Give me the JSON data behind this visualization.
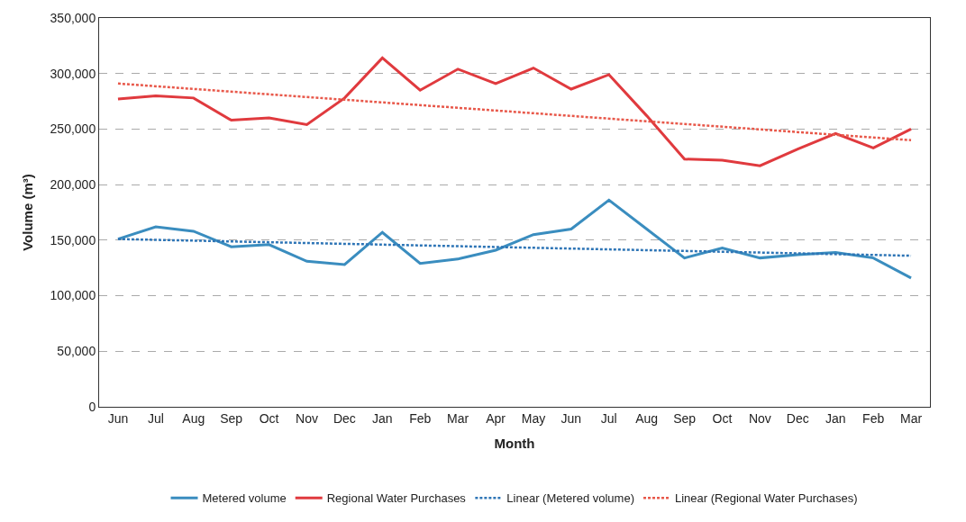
{
  "chart_data": {
    "type": "line",
    "xlabel": "Month",
    "ylabel": "Volume (m³)",
    "categories": [
      "Jun",
      "Jul",
      "Aug",
      "Sep",
      "Oct",
      "Nov",
      "Dec",
      "Jan",
      "Feb",
      "Mar",
      "Apr",
      "May",
      "Jun",
      "Jul",
      "Aug",
      "Sep",
      "Oct",
      "Nov",
      "Dec",
      "Jan",
      "Feb",
      "Mar"
    ],
    "series": [
      {
        "name": "Metered volume",
        "color": "#3a8dbf",
        "line_style": "solid",
        "values": [
          151000,
          162000,
          158000,
          144000,
          146000,
          131000,
          128000,
          157000,
          129000,
          133000,
          141000,
          155000,
          160000,
          186000,
          160000,
          134000,
          143000,
          134000,
          137000,
          139000,
          134000,
          116000
        ]
      },
      {
        "name": "Regional Water Purchases",
        "color": "#e03a3e",
        "line_style": "solid",
        "values": [
          277000,
          280000,
          278000,
          258000,
          260000,
          254000,
          278000,
          314000,
          285000,
          304000,
          291000,
          305000,
          286000,
          299000,
          262000,
          223000,
          222000,
          217000,
          232000,
          246000,
          233000,
          250000
        ]
      },
      {
        "name": "Linear (Metered volume)",
        "color": "#2e75b6",
        "line_style": "dotted",
        "values": [
          151000,
          null,
          null,
          null,
          null,
          null,
          null,
          null,
          null,
          null,
          null,
          null,
          null,
          null,
          null,
          null,
          null,
          null,
          null,
          null,
          null,
          136000
        ]
      },
      {
        "name": "Linear (Regional Water Purchases)",
        "color": "#e8584a",
        "line_style": "dotted",
        "values": [
          291000,
          null,
          null,
          null,
          null,
          null,
          null,
          null,
          null,
          null,
          null,
          null,
          null,
          null,
          null,
          null,
          null,
          null,
          null,
          null,
          null,
          240000
        ]
      }
    ],
    "ylim": [
      0,
      350000
    ],
    "yticks": [
      {
        "value": 0,
        "label": "0"
      },
      {
        "value": 50000,
        "label": "50,000"
      },
      {
        "value": 100000,
        "label": "100,000"
      },
      {
        "value": 150000,
        "label": "150,000"
      },
      {
        "value": 200000,
        "label": "200,000"
      },
      {
        "value": 250000,
        "label": "250,000"
      },
      {
        "value": 300000,
        "label": "300,000"
      },
      {
        "value": 350000,
        "label": "350,000"
      }
    ],
    "grid": "y",
    "legend": "bottom",
    "marker": "none"
  }
}
